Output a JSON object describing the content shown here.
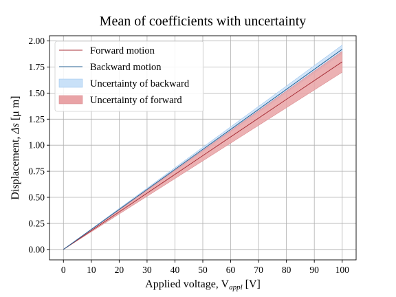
{
  "chart_data": {
    "type": "line",
    "title": "Mean of coefficients with uncertainty",
    "xlabel_main": "Applied voltage, V",
    "xlabel_sub": "appl",
    "xlabel_unit": "  [V]",
    "ylabel_main": "Displacement, ",
    "ylabel_delta": "Δs",
    "ylabel_unit": " [μ m]",
    "xlim": [
      -5,
      105
    ],
    "ylim": [
      -0.1,
      2.05
    ],
    "x_ticks": [
      0,
      10,
      20,
      30,
      40,
      50,
      60,
      70,
      80,
      90,
      100
    ],
    "x_tick_labels": [
      "0",
      "10",
      "20",
      "30",
      "40",
      "50",
      "60",
      "70",
      "80",
      "90",
      "100"
    ],
    "y_ticks": [
      0.0,
      0.25,
      0.5,
      0.75,
      1.0,
      1.25,
      1.5,
      1.75,
      2.0
    ],
    "y_tick_labels": [
      "0.00",
      "0.25",
      "0.50",
      "0.75",
      "1.00",
      "1.25",
      "1.50",
      "1.75",
      "2.00"
    ],
    "grid": true,
    "legend_position": "top-left",
    "x": [
      0,
      10,
      20,
      30,
      40,
      50,
      60,
      70,
      80,
      90,
      100
    ],
    "series": [
      {
        "name": "Forward motion",
        "kind": "line",
        "color": "#a8323a",
        "values": [
          0.0,
          0.18,
          0.36,
          0.54,
          0.72,
          0.9,
          1.08,
          1.26,
          1.44,
          1.62,
          1.8
        ]
      },
      {
        "name": "Backward motion",
        "kind": "line",
        "color": "#2a6496",
        "values": [
          0.0,
          0.192,
          0.384,
          0.576,
          0.768,
          0.96,
          1.152,
          1.344,
          1.536,
          1.728,
          1.92
        ]
      }
    ],
    "bands": [
      {
        "name": "Uncertainty of backward",
        "color": "#c9e1f8",
        "edge": "#9fc6ee",
        "lower": [
          0.0,
          0.188,
          0.376,
          0.564,
          0.752,
          0.94,
          1.128,
          1.316,
          1.504,
          1.692,
          1.88
        ],
        "upper": [
          0.0,
          0.196,
          0.392,
          0.588,
          0.784,
          0.98,
          1.176,
          1.372,
          1.568,
          1.764,
          1.96
        ]
      },
      {
        "name": "Uncertainty of forward",
        "color": "#e9a3a6",
        "edge": "#d98c90",
        "lower": [
          0.0,
          0.17,
          0.34,
          0.51,
          0.68,
          0.85,
          1.02,
          1.19,
          1.36,
          1.53,
          1.7
        ],
        "upper": [
          0.0,
          0.19,
          0.38,
          0.57,
          0.76,
          0.95,
          1.14,
          1.33,
          1.52,
          1.71,
          1.9
        ]
      }
    ],
    "legend_order": [
      "Forward motion",
      "Backward motion",
      "Uncertainty of backward",
      "Uncertainty of forward"
    ]
  }
}
